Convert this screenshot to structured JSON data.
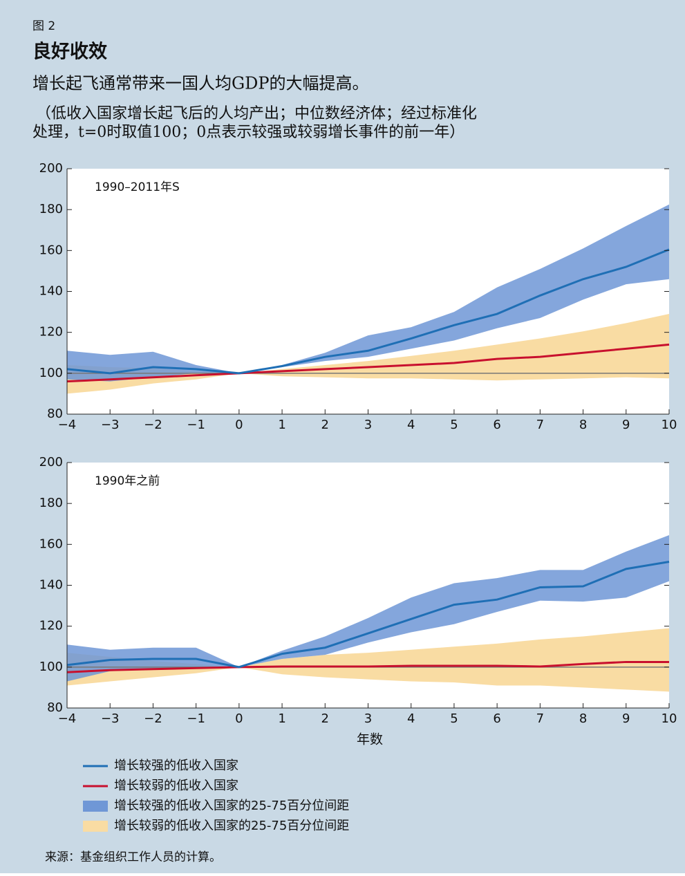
{
  "figure_label": "图 2",
  "title": "良好收效",
  "subtitle": "增长起飞通常带来一国人均GDP的大幅提高。",
  "note": [
    "（低收入国家增长起飞后的人均产出；中位数经济体；经过标准化",
    "处理，t=0时取值100；0点表示较强或较弱增长事件的前一年）"
  ],
  "x_label": "年数",
  "source": "来源：基金组织工作人员的计算。",
  "chart_data": [
    {
      "type": "line",
      "panel_label": "1990–2011年S",
      "x": [
        -4,
        -3,
        -2,
        -1,
        0,
        1,
        2,
        3,
        4,
        5,
        6,
        7,
        8,
        9,
        10
      ],
      "xlim": [
        -4,
        10
      ],
      "ylim": [
        80,
        200
      ],
      "yticks": [
        80,
        100,
        120,
        140,
        160,
        180,
        200
      ],
      "xticks": [
        {
          "value": -4,
          "label": "−4"
        },
        {
          "value": -3,
          "label": "−3"
        },
        {
          "value": -2,
          "label": "−2"
        },
        {
          "value": -1,
          "label": "−1"
        },
        0,
        1,
        2,
        3,
        4,
        5,
        6,
        7,
        8,
        9,
        10
      ],
      "hline": 100,
      "series": [
        {
          "name": "增长较强的低收入国家",
          "color": "#1f6fb5",
          "values": [
            102,
            100,
            103,
            102,
            100,
            103.5,
            108,
            111,
            117,
            123.5,
            129,
            138,
            146,
            152,
            160.5
          ]
        },
        {
          "name": "增长较弱的低收入国家",
          "color": "#c8102e",
          "values": [
            96,
            97,
            98,
            99,
            100,
            101,
            102,
            103,
            104,
            105,
            107,
            108,
            110,
            112,
            114
          ]
        },
        {
          "name": "增长较强的低收入国家的25-75百分位间距",
          "color": "#6f97d6",
          "low": [
            97,
            96,
            98,
            100,
            100,
            103,
            106,
            108,
            112,
            116,
            122,
            127,
            136,
            143.5,
            146
          ],
          "high": [
            111,
            109,
            110.5,
            104,
            100,
            104,
            110,
            118.5,
            122.5,
            130,
            142,
            151,
            161,
            172,
            182.5
          ]
        },
        {
          "name": "增长较弱的低收入国家的25-75百分位间距",
          "color": "#f9dca3",
          "low": [
            90,
            92,
            95,
            97,
            100,
            98.5,
            98,
            97.5,
            97.5,
            97,
            96.5,
            97,
            97.5,
            98,
            97.5
          ],
          "high": [
            104,
            103,
            102.5,
            101,
            100,
            102,
            104,
            106,
            108.5,
            111,
            114,
            117,
            120.5,
            124.5,
            129
          ]
        }
      ]
    },
    {
      "type": "line",
      "panel_label": "1990年之前",
      "x": [
        -4,
        -3,
        -2,
        -1,
        0,
        1,
        2,
        3,
        4,
        5,
        6,
        7,
        8,
        9,
        10
      ],
      "xlim": [
        -4,
        10
      ],
      "ylim": [
        80,
        200
      ],
      "yticks": [
        80,
        100,
        120,
        140,
        160,
        180,
        200
      ],
      "xticks": [
        {
          "value": -4,
          "label": "−4"
        },
        {
          "value": -3,
          "label": "−3"
        },
        {
          "value": -2,
          "label": "−2"
        },
        {
          "value": -1,
          "label": "−1"
        },
        0,
        1,
        2,
        3,
        4,
        5,
        6,
        7,
        8,
        9,
        10
      ],
      "hline": 100,
      "series": [
        {
          "color": "#1f6fb5",
          "values": [
            101,
            103.5,
            104,
            104,
            100,
            106.5,
            109.5,
            116.5,
            123.5,
            130.5,
            133,
            139,
            139.5,
            148,
            151.5
          ]
        },
        {
          "color": "#c8102e",
          "values": [
            97.5,
            98.5,
            99,
            99.5,
            100,
            100.3,
            100.3,
            100.3,
            100.6,
            100.6,
            100.6,
            100.3,
            101.5,
            102.5,
            102.5
          ]
        },
        {
          "color": "#6f97d6",
          "low": [
            93,
            98,
            99,
            100,
            100,
            104,
            106,
            112,
            117,
            121,
            127,
            132.5,
            132,
            134,
            142
          ],
          "high": [
            111,
            108.5,
            109.5,
            109.5,
            100,
            108,
            115,
            124,
            134,
            141,
            143.5,
            147.5,
            147.5,
            156.5,
            164.5
          ]
        },
        {
          "color": "#f9dca3",
          "low": [
            91,
            93,
            95,
            97,
            100,
            96.5,
            95,
            94,
            93,
            92.5,
            91,
            91,
            90,
            89,
            88
          ],
          "high": [
            107,
            105,
            103,
            101.5,
            100,
            104,
            106,
            107,
            108.5,
            110,
            111.5,
            113.5,
            115,
            117,
            119
          ]
        }
      ]
    }
  ]
}
